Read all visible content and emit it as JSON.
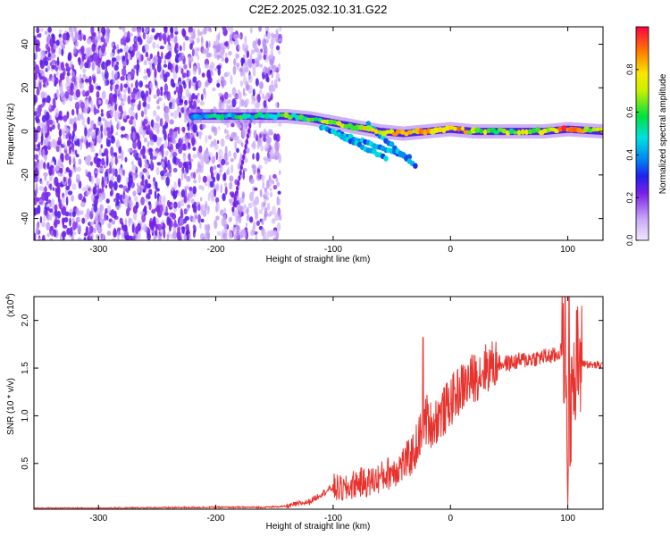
{
  "title": "C2E2.2025.032.10.31.G22",
  "colors": {
    "snr_line": "#e8322d",
    "axis": "#000000",
    "noise_dark": "#5a10e0",
    "noise_light": "#c8b2f5"
  },
  "chart_data": [
    {
      "type": "heatmap",
      "xlabel": "Height of straight line (km)",
      "ylabel": "Frequency (Hz)",
      "xlim": [
        -355,
        130
      ],
      "ylim": [
        -50,
        48
      ],
      "xticks": [
        -300,
        -200,
        -100,
        0,
        100
      ],
      "yticks": [
        -40,
        -20,
        0,
        20,
        40
      ],
      "colorbar": {
        "label": "Normalized spectral amplitude",
        "range": [
          0.0,
          1.0
        ],
        "ticks": [
          0.0,
          0.2,
          0.4,
          0.6,
          0.8
        ],
        "colormap": [
          "#c8a8f8",
          "#7a20e8",
          "#2020f0",
          "#00d8f0",
          "#00e040",
          "#f0f000",
          "#ff8000",
          "#ff0040"
        ]
      },
      "signal_track": [
        {
          "x": -220,
          "freq": 7,
          "amp": 0.45
        },
        {
          "x": -200,
          "freq": 7,
          "amp": 0.5
        },
        {
          "x": -180,
          "freq": 7,
          "amp": 0.5
        },
        {
          "x": -160,
          "freq": 7,
          "amp": 0.5
        },
        {
          "x": -140,
          "freq": 7,
          "amp": 0.55
        },
        {
          "x": -120,
          "freq": 6,
          "amp": 0.6
        },
        {
          "x": -100,
          "freq": 4,
          "amp": 0.65
        },
        {
          "x": -80,
          "freq": 2,
          "amp": 0.7
        },
        {
          "x": -60,
          "freq": 0,
          "amp": 0.7
        },
        {
          "x": -40,
          "freq": -1,
          "amp": 0.8
        },
        {
          "x": -20,
          "freq": 0,
          "amp": 0.8
        },
        {
          "x": 0,
          "freq": 1,
          "amp": 0.85
        },
        {
          "x": 20,
          "freq": 0,
          "amp": 0.7
        },
        {
          "x": 50,
          "freq": 0,
          "amp": 0.65
        },
        {
          "x": 80,
          "freq": 0,
          "amp": 0.65
        },
        {
          "x": 100,
          "freq": 1,
          "amp": 0.95
        },
        {
          "x": 130,
          "freq": 0,
          "amp": 0.6
        }
      ],
      "noise_region": {
        "x_dense": [
          -355,
          -215
        ],
        "x_sparse": [
          -215,
          -145
        ],
        "freq": [
          -50,
          48
        ]
      }
    },
    {
      "type": "line",
      "xlabel": "Height of straight line (km)",
      "ylabel": "SNR (10 * v/v)",
      "y_multiplier": "(x10",
      "y_multiplier_exp": "4",
      "y_multiplier_close": ")",
      "xlim": [
        -355,
        130
      ],
      "ylim": [
        0.02,
        2.25
      ],
      "xticks": [
        -300,
        -200,
        -100,
        0,
        100
      ],
      "yticks": [
        0.5,
        1.0,
        1.5,
        2.0
      ],
      "ytick_labels": [
        "0.5",
        "1.0",
        "1.5",
        "2.0"
      ],
      "series": [
        {
          "x": [
            -355,
            -300,
            -250,
            -200,
            -160,
            -140,
            -120,
            -110,
            -100,
            -90,
            -80,
            -70,
            -60,
            -50,
            -45,
            -40,
            -35,
            -30,
            -26,
            -22,
            -20,
            -15,
            -10,
            -5,
            0,
            10,
            20,
            30,
            40,
            50,
            60,
            70,
            80,
            90,
            95,
            98,
            100,
            101,
            102,
            104,
            106,
            108,
            110,
            115,
            120,
            130
          ],
          "y": [
            0.03,
            0.03,
            0.035,
            0.04,
            0.04,
            0.05,
            0.1,
            0.18,
            0.25,
            0.22,
            0.3,
            0.3,
            0.35,
            0.42,
            0.45,
            0.5,
            0.55,
            0.65,
            0.8,
            1.0,
            0.95,
            0.9,
            1.0,
            1.05,
            1.15,
            1.3,
            1.4,
            1.5,
            1.55,
            1.55,
            1.58,
            1.6,
            1.62,
            1.63,
            1.7,
            1.8,
            0.2,
            2.2,
            0.6,
            2.0,
            1.2,
            1.6,
            1.55,
            1.55,
            1.53,
            1.53
          ]
        }
      ]
    }
  ]
}
